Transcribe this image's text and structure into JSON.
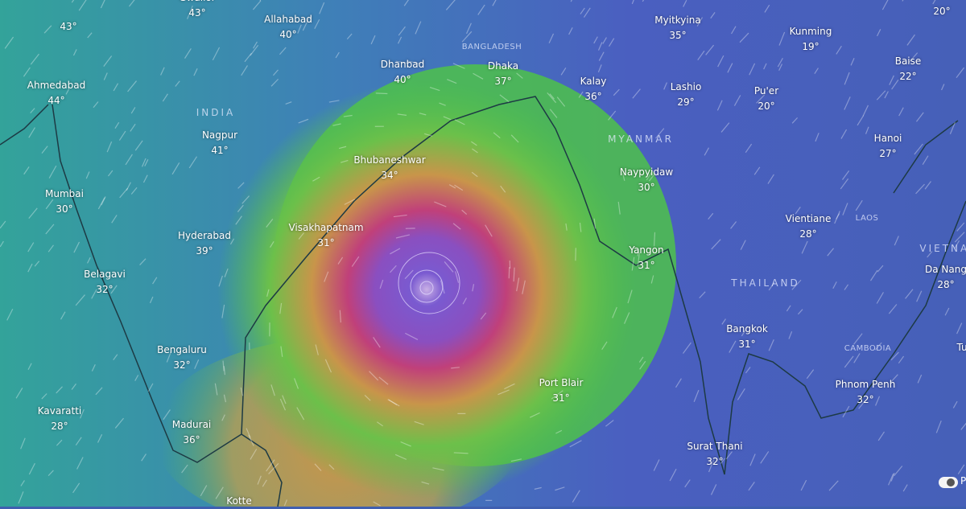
{
  "map": {
    "layer": "wind",
    "colors": {
      "ocean_low": "#2f9aa8",
      "land_low": "#4a5fc0",
      "storm_core": "#8a4fc0",
      "storm_ring": "#c0407a",
      "storm_mid": "#c8954a",
      "wind_zone": "#4ec24a"
    },
    "countries": [
      {
        "name": "INDIA"
      },
      {
        "name": "BANGLADESH"
      },
      {
        "name": "MYANMAR"
      },
      {
        "name": "THAILAND"
      },
      {
        "name": "LAOS"
      },
      {
        "name": "CAMBODIA"
      },
      {
        "name": "VIETNAM"
      }
    ],
    "cities": [
      {
        "name": "",
        "temp": "43°"
      },
      {
        "name": "Gwalior",
        "temp": "43°"
      },
      {
        "name": "Allahabad",
        "temp": "40°"
      },
      {
        "name": "Ahmedabad",
        "temp": "44°"
      },
      {
        "name": "Dhanbad",
        "temp": "40°"
      },
      {
        "name": "Dhaka",
        "temp": "37°"
      },
      {
        "name": "Myitkyina",
        "temp": "35°"
      },
      {
        "name": "Kunming",
        "temp": "19°"
      },
      {
        "name": "",
        "temp": "20°"
      },
      {
        "name": "Baise",
        "temp": "22°"
      },
      {
        "name": "Kalay",
        "temp": "36°"
      },
      {
        "name": "Lashio",
        "temp": "29°"
      },
      {
        "name": "Pu'er",
        "temp": "20°"
      },
      {
        "name": "Nagpur",
        "temp": "41°"
      },
      {
        "name": "Hanoi",
        "temp": "27°"
      },
      {
        "name": "Bhubaneshwar",
        "temp": "34°"
      },
      {
        "name": "Naypyidaw",
        "temp": "30°"
      },
      {
        "name": "Mumbai",
        "temp": "30°"
      },
      {
        "name": "Vientiane",
        "temp": "28°"
      },
      {
        "name": "Hyderabad",
        "temp": "39°"
      },
      {
        "name": "Visakhapatnam",
        "temp": "31°"
      },
      {
        "name": "Yangon",
        "temp": "31°"
      },
      {
        "name": "Belagavi",
        "temp": "32°"
      },
      {
        "name": "Da Nang",
        "temp": "28°"
      },
      {
        "name": "Bangkok",
        "temp": "31°"
      },
      {
        "name": "Bengaluru",
        "temp": "32°"
      },
      {
        "name": "Port Blair",
        "temp": "31°"
      },
      {
        "name": "Phnom Penh",
        "temp": "32°"
      },
      {
        "name": "Kavaratti",
        "temp": "28°"
      },
      {
        "name": "Madurai",
        "temp": "36°"
      },
      {
        "name": "Surat Thani",
        "temp": "32°"
      },
      {
        "name": "Kotte",
        "temp": ""
      },
      {
        "name": "Tu",
        "temp": ""
      }
    ],
    "toggle_label": "P"
  }
}
